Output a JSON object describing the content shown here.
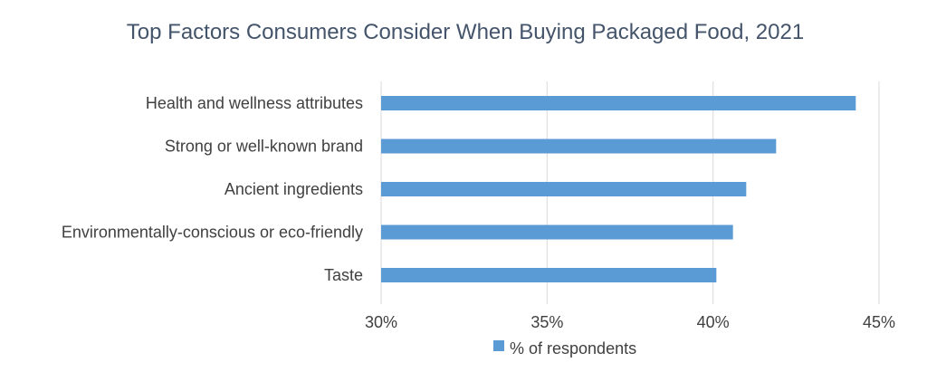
{
  "chart_data": {
    "type": "bar",
    "orientation": "horizontal",
    "title": "Top Factors Consumers Consider When Buying Packaged Food, 2021",
    "categories": [
      "Health and wellness attributes",
      "Strong or well-known brand",
      "Ancient ingredients",
      "Environmentally-conscious or eco-friendly",
      "Taste"
    ],
    "series": [
      {
        "name": "% of respondents",
        "values": [
          44.3,
          41.9,
          41.0,
          40.6,
          40.1
        ],
        "color": "#5b9bd5"
      }
    ],
    "xlim": [
      30,
      45
    ],
    "xticks": [
      30,
      35,
      40,
      45
    ],
    "xtick_labels": [
      "30%",
      "35%",
      "40%",
      "45%"
    ],
    "grid": "vertical",
    "legend": "bottom"
  }
}
